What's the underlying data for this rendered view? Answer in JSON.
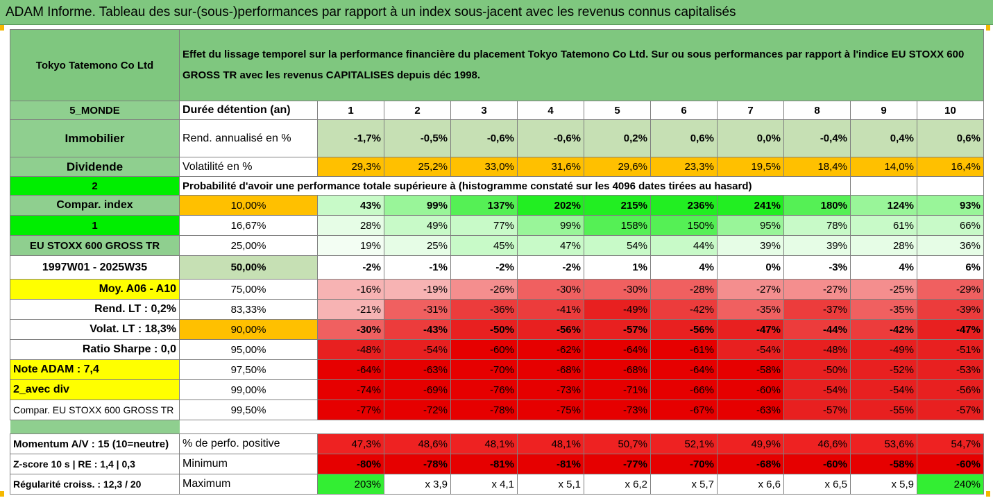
{
  "title": "ADAM Informe. Tableau des sur-(sous-)performances par rapport à un index sous-jacent avec les revenus connus capitalisés",
  "company": "Tokyo Tatemono Co Ltd",
  "header_text": "Effet du lissage temporel sur la performance financière du placement Tokyo Tatemono Co Ltd. Sur ou sous performances par rapport à l'indice EU STOXX 600 GROSS TR avec les revenus CAPITALISES depuis déc 1998.",
  "region": "5_MONDE",
  "holding_label": "Durée détention (an)",
  "years": [
    "1",
    "2",
    "3",
    "4",
    "5",
    "6",
    "7",
    "8",
    "9",
    "10"
  ],
  "sector": "Immobilier",
  "rend_label": "Rend. annualisé en %",
  "rend": [
    "-1,7%",
    "-0,5%",
    "-0,6%",
    "-0,6%",
    "0,2%",
    "0,6%",
    "0,0%",
    "-0,4%",
    "0,4%",
    "0,6%"
  ],
  "dividend": "Dividende",
  "vol_label": "Volatilité en %",
  "vol": [
    "29,3%",
    "25,2%",
    "33,0%",
    "31,6%",
    "29,6%",
    "23,3%",
    "19,5%",
    "18,4%",
    "14,0%",
    "16,4%"
  ],
  "num2": "2",
  "prob_label": "Probabilité d'avoir une performance totale supérieure à (histogramme constaté sur les 4096 dates tirées au hasard)",
  "prob_rows": [
    {
      "left": "Compar. index",
      "pct": "10,00%",
      "vals": [
        "43%",
        "99%",
        "137%",
        "202%",
        "215%",
        "236%",
        "241%",
        "180%",
        "124%",
        "93%"
      ]
    },
    {
      "left": "1",
      "pct": "16,67%",
      "vals": [
        "28%",
        "49%",
        "77%",
        "99%",
        "158%",
        "150%",
        "95%",
        "78%",
        "61%",
        "66%"
      ]
    },
    {
      "left": "EU STOXX 600 GROSS TR",
      "pct": "25,00%",
      "vals": [
        "19%",
        "25%",
        "45%",
        "47%",
        "54%",
        "44%",
        "39%",
        "39%",
        "28%",
        "36%"
      ]
    },
    {
      "left": "1997W01 - 2025W35",
      "pct": "50,00%",
      "vals": [
        "-2%",
        "-1%",
        "-2%",
        "-2%",
        "1%",
        "4%",
        "0%",
        "-3%",
        "4%",
        "6%"
      ]
    },
    {
      "left": "Moy. A06 - A10",
      "pct": "75,00%",
      "vals": [
        "-16%",
        "-19%",
        "-26%",
        "-30%",
        "-30%",
        "-28%",
        "-27%",
        "-27%",
        "-25%",
        "-29%"
      ]
    },
    {
      "left": "Rend. LT :   0,2%",
      "pct": "83,33%",
      "vals": [
        "-21%",
        "-31%",
        "-36%",
        "-41%",
        "-49%",
        "-42%",
        "-35%",
        "-37%",
        "-35%",
        "-39%"
      ]
    },
    {
      "left": "Volat. LT :   18,3%",
      "pct": "90,00%",
      "vals": [
        "-30%",
        "-43%",
        "-50%",
        "-56%",
        "-57%",
        "-56%",
        "-47%",
        "-44%",
        "-42%",
        "-47%"
      ]
    },
    {
      "left": "Ratio Sharpe :   0,0",
      "pct": "95,00%",
      "vals": [
        "-48%",
        "-54%",
        "-60%",
        "-62%",
        "-64%",
        "-61%",
        "-54%",
        "-48%",
        "-49%",
        "-51%"
      ]
    },
    {
      "left": "Note ADAM : 7,4",
      "pct": "97,50%",
      "vals": [
        "-64%",
        "-63%",
        "-70%",
        "-68%",
        "-68%",
        "-64%",
        "-58%",
        "-50%",
        "-52%",
        "-53%"
      ]
    },
    {
      "left": "2_avec div",
      "pct": "99,00%",
      "vals": [
        "-74%",
        "-69%",
        "-76%",
        "-73%",
        "-71%",
        "-66%",
        "-60%",
        "-54%",
        "-54%",
        "-56%"
      ]
    },
    {
      "left": "Compar. EU STOXX 600 GROSS TR",
      "pct": "99,50%",
      "vals": [
        "-77%",
        "-72%",
        "-78%",
        "-75%",
        "-73%",
        "-67%",
        "-63%",
        "-57%",
        "-55%",
        "-57%"
      ]
    }
  ],
  "bottom_rows": [
    {
      "left": "Momentum A/V : 15 (10=neutre)",
      "label": "% de perfo. positive",
      "vals": [
        "47,3%",
        "48,6%",
        "48,1%",
        "48,1%",
        "50,7%",
        "52,1%",
        "49,9%",
        "46,6%",
        "53,6%",
        "54,7%"
      ]
    },
    {
      "left": "Z-score 10 s  | RE : 1,4 | 0,3",
      "label": "Minimum",
      "vals": [
        "-80%",
        "-78%",
        "-81%",
        "-81%",
        "-77%",
        "-70%",
        "-68%",
        "-60%",
        "-58%",
        "-60%"
      ]
    },
    {
      "left": "Régularité croiss. : 12,3 / 20",
      "label": "Maximum",
      "vals": [
        "203%",
        "x 3,9",
        "x 4,1",
        "x 5,1",
        "x 6,2",
        "x 5,7",
        "x 6,6",
        "x 6,5",
        "x 5,9",
        "240%"
      ]
    }
  ],
  "colors": {
    "header_green": "#7fc77f",
    "bright_green": "#00ee00",
    "yellow": "#ffff00",
    "orange": "#ffc000",
    "red": "#ff0000"
  }
}
